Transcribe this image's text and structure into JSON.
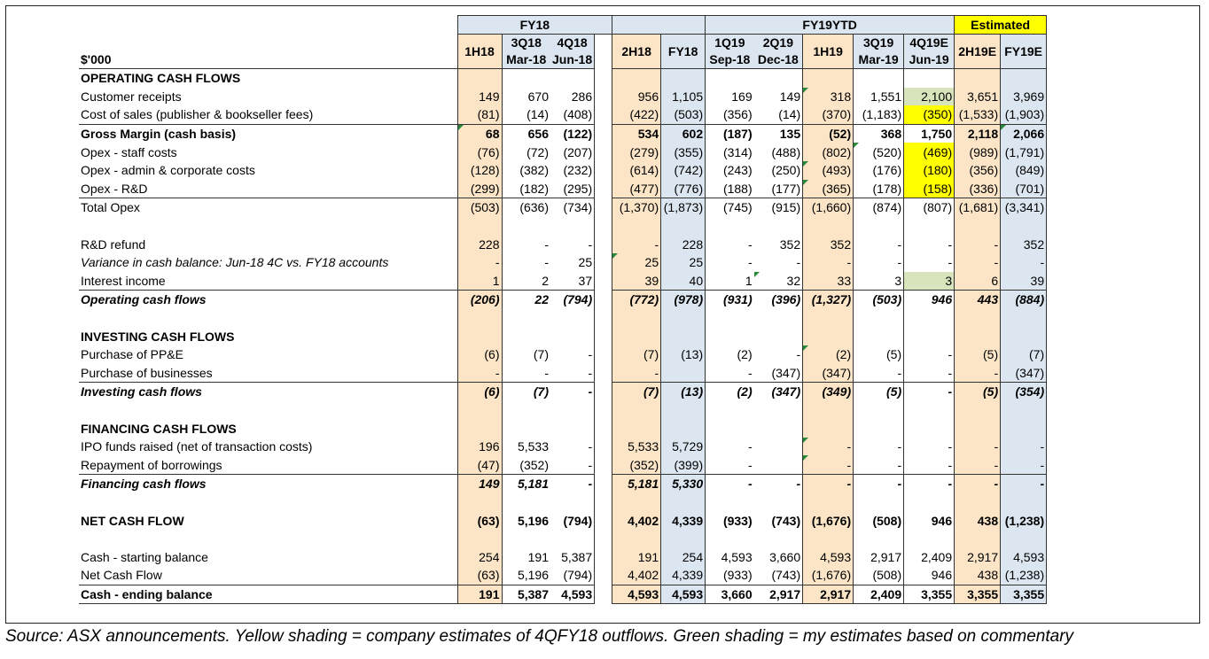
{
  "header": {
    "unit_label": "$'000",
    "group_fy18": "FY18",
    "group_fy19ytd": "FY19YTD",
    "group_estimated": "Estimated",
    "col_1h18": "1H18",
    "col_3q18": "3Q18",
    "col_4q18": "4Q18",
    "col_2h18": "2H18",
    "col_fy18": "FY18",
    "col_1q19": "1Q19",
    "col_2q19": "2Q19",
    "col_1h19": "1H19",
    "col_3q19": "3Q19",
    "col_4q19e": "4Q19E",
    "col_2h19e": "2H19E",
    "col_fy19e": "FY19E",
    "sub_3q18": "Mar-18",
    "sub_4q18": "Jun-18",
    "sub_1q19": "Sep-18",
    "sub_2q19": "Dec-18",
    "sub_3q19": "Mar-19",
    "sub_4q19e": "Jun-19"
  },
  "rows": [
    {
      "label": "OPERATING CASH FLOWS",
      "v": [
        "",
        "",
        "",
        "",
        "",
        "",
        "",
        "",
        "",
        "",
        "",
        ""
      ]
    },
    {
      "label": "Customer receipts",
      "v": [
        "149",
        "670",
        "286",
        "956",
        "1,105",
        "169",
        "149",
        "318",
        "1,551",
        "2,100",
        "3,651",
        "3,969"
      ]
    },
    {
      "label": "Cost of sales (publisher & bookseller fees)",
      "v": [
        "(81)",
        "(14)",
        "(408)",
        "(422)",
        "(503)",
        "(356)",
        "(14)",
        "(370)",
        "(1,183)",
        "(350)",
        "(1,533)",
        "(1,903)"
      ]
    },
    {
      "label": "Gross Margin (cash basis)",
      "v": [
        "68",
        "656",
        "(122)",
        "534",
        "602",
        "(187)",
        "135",
        "(52)",
        "368",
        "1,750",
        "2,118",
        "2,066"
      ]
    },
    {
      "label": "Opex - staff costs",
      "v": [
        "(76)",
        "(72)",
        "(207)",
        "(279)",
        "(355)",
        "(314)",
        "(488)",
        "(802)",
        "(520)",
        "(469)",
        "(989)",
        "(1,791)"
      ]
    },
    {
      "label": "Opex - admin & corporate costs",
      "v": [
        "(128)",
        "(382)",
        "(232)",
        "(614)",
        "(742)",
        "(243)",
        "(250)",
        "(493)",
        "(176)",
        "(180)",
        "(356)",
        "(849)"
      ]
    },
    {
      "label": "Opex - R&D",
      "v": [
        "(299)",
        "(182)",
        "(295)",
        "(477)",
        "(776)",
        "(188)",
        "(177)",
        "(365)",
        "(178)",
        "(158)",
        "(336)",
        "(701)"
      ]
    },
    {
      "label": "Total Opex",
      "v": [
        "(503)",
        "(636)",
        "(734)",
        "(1,370)",
        "(1,873)",
        "(745)",
        "(915)",
        "(1,660)",
        "(874)",
        "(807)",
        "(1,681)",
        "(3,341)"
      ]
    },
    {
      "label": "",
      "v": [
        "",
        "",
        "",
        "",
        "",
        "",
        "",
        "",
        "",
        "",
        "",
        ""
      ]
    },
    {
      "label": "R&D refund",
      "v": [
        "228",
        "-",
        "-",
        "-",
        "228",
        "-",
        "352",
        "352",
        "-",
        "-",
        "-",
        "352"
      ]
    },
    {
      "label": "Variance in cash balance: Jun-18 4C vs. FY18 accounts",
      "v": [
        "-",
        "-",
        "25",
        "25",
        "25",
        "-",
        "-",
        "-",
        "-",
        "-",
        "-",
        "-"
      ]
    },
    {
      "label": "Interest income",
      "v": [
        "1",
        "2",
        "37",
        "39",
        "40",
        "1",
        "32",
        "33",
        "3",
        "3",
        "6",
        "39"
      ]
    },
    {
      "label": "Operating cash flows",
      "v": [
        "(206)",
        "22",
        "(794)",
        "(772)",
        "(978)",
        "(931)",
        "(396)",
        "(1,327)",
        "(503)",
        "946",
        "443",
        "(884)"
      ]
    },
    {
      "label": "",
      "v": [
        "",
        "",
        "",
        "",
        "",
        "",
        "",
        "",
        "",
        "",
        "",
        ""
      ]
    },
    {
      "label": "INVESTING CASH FLOWS",
      "v": [
        "",
        "",
        "",
        "",
        "",
        "",
        "",
        "",
        "",
        "",
        "",
        ""
      ]
    },
    {
      "label": "Purchase of PP&E",
      "v": [
        "(6)",
        "(7)",
        "-",
        "(7)",
        "(13)",
        "(2)",
        "-",
        "(2)",
        "(5)",
        "-",
        "(5)",
        "(7)"
      ]
    },
    {
      "label": "Purchase of businesses",
      "v": [
        "-",
        "-",
        "-",
        "-",
        "",
        "-",
        "(347)",
        "(347)",
        "-",
        "-",
        "-",
        "(347)"
      ]
    },
    {
      "label": "Investing cash flows",
      "v": [
        "(6)",
        "(7)",
        "-",
        "(7)",
        "(13)",
        "(2)",
        "(347)",
        "(349)",
        "(5)",
        "-",
        "(5)",
        "(354)"
      ]
    },
    {
      "label": "",
      "v": [
        "",
        "",
        "",
        "",
        "",
        "",
        "",
        "",
        "",
        "",
        "",
        ""
      ]
    },
    {
      "label": "FINANCING CASH FLOWS",
      "v": [
        "",
        "",
        "",
        "",
        "",
        "",
        "",
        "",
        "",
        "",
        "",
        ""
      ]
    },
    {
      "label": "IPO funds raised (net of transaction costs)",
      "v": [
        "196",
        "5,533",
        "-",
        "5,533",
        "5,729",
        "-",
        "",
        "-",
        "-",
        "-",
        "-",
        "-"
      ]
    },
    {
      "label": "Repayment of borrowings",
      "v": [
        "(47)",
        "(352)",
        "-",
        "(352)",
        "(399)",
        "-",
        "",
        "-",
        "-",
        "-",
        "-",
        "-"
      ]
    },
    {
      "label": "Financing cash flows",
      "v": [
        "149",
        "5,181",
        "-",
        "5,181",
        "5,330",
        "-",
        "-",
        "-",
        "-",
        "-",
        "-",
        "-"
      ]
    },
    {
      "label": "",
      "v": [
        "",
        "",
        "",
        "",
        "",
        "",
        "",
        "",
        "",
        "",
        "",
        ""
      ]
    },
    {
      "label": "NET CASH FLOW",
      "v": [
        "(63)",
        "5,196",
        "(794)",
        "4,402",
        "4,339",
        "(933)",
        "(743)",
        "(1,676)",
        "(508)",
        "946",
        "438",
        "(1,238)"
      ]
    },
    {
      "label": "",
      "v": [
        "",
        "",
        "",
        "",
        "",
        "",
        "",
        "",
        "",
        "",
        "",
        ""
      ]
    },
    {
      "label": "Cash - starting balance",
      "v": [
        "254",
        "191",
        "5,387",
        "191",
        "254",
        "4,593",
        "3,660",
        "4,593",
        "2,917",
        "2,409",
        "2,917",
        "4,593"
      ]
    },
    {
      "label": "Net Cash Flow",
      "v": [
        "(63)",
        "5,196",
        "(794)",
        "4,402",
        "4,339",
        "(933)",
        "(743)",
        "(1,676)",
        "(508)",
        "946",
        "438",
        "(1,238)"
      ]
    },
    {
      "label": "Cash - ending balance",
      "v": [
        "191",
        "5,387",
        "4,593",
        "4,593",
        "4,593",
        "3,660",
        "2,917",
        "2,917",
        "2,409",
        "3,355",
        "3,355",
        "3,355"
      ]
    }
  ],
  "caption": "Source: ASX announcements. Yellow shading = company estimates of 4QFY18 outflows. Green shading = my estimates based on commentary",
  "colors": {
    "blue_header": "#dce6f1",
    "tan_half_year": "#fbe5c6",
    "yellow_company_estimate": "#ffff00",
    "green_my_estimate": "#d8e4bc",
    "comment_marker": "#2a8a3a"
  }
}
